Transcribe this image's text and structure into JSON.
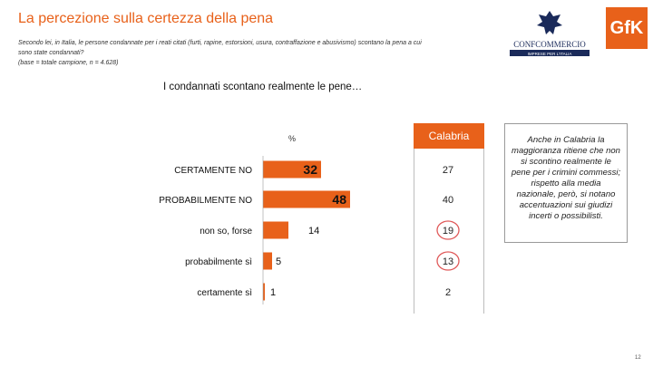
{
  "header": {
    "title": "La percezione sulla certezza della pena",
    "question_line1": "Secondo lei, in Italia, le persone condannate per i reati citati (furti, rapine, estorsioni, usura, contraffazione e abusivismo) scontano la pena a cui",
    "question_line2": "sono state condannati?",
    "base_note": "(base = totale campione, n = 4.628)",
    "subtitle": "I condannati scontano realmente le pene…"
  },
  "logos": {
    "confcommercio_name": "CONFCOMMERCIO",
    "confcommercio_tagline": "IMPRESE PER L'ITALIA",
    "gfk": "GfK"
  },
  "note": {
    "text": "Anche in Calabria la maggioranza ritiene che non si scontino realmente le pene per i crimini commessi; rispetto alla media nazionale, però, si notano accentuazioni sui giudizi incerti o possibilisti."
  },
  "page_number": "12",
  "colors": {
    "accent": "#e8611a",
    "circle": "#e05a5a"
  },
  "chart_data": {
    "type": "bar",
    "orientation": "horizontal",
    "unit_label": "%",
    "categories": [
      "CERTAMENTE NO",
      "PROBABILMENTE NO",
      "non so, forse",
      "probabilmente sì",
      "certamente sì"
    ],
    "series": [
      {
        "values": [
          32,
          48,
          14,
          5,
          1
        ]
      },
      {
        "name": "Calabria",
        "values": [
          27,
          40,
          19,
          13,
          2
        ]
      }
    ],
    "highlighted_region_values": [
      19,
      13
    ],
    "xlim": [
      0,
      50
    ]
  }
}
